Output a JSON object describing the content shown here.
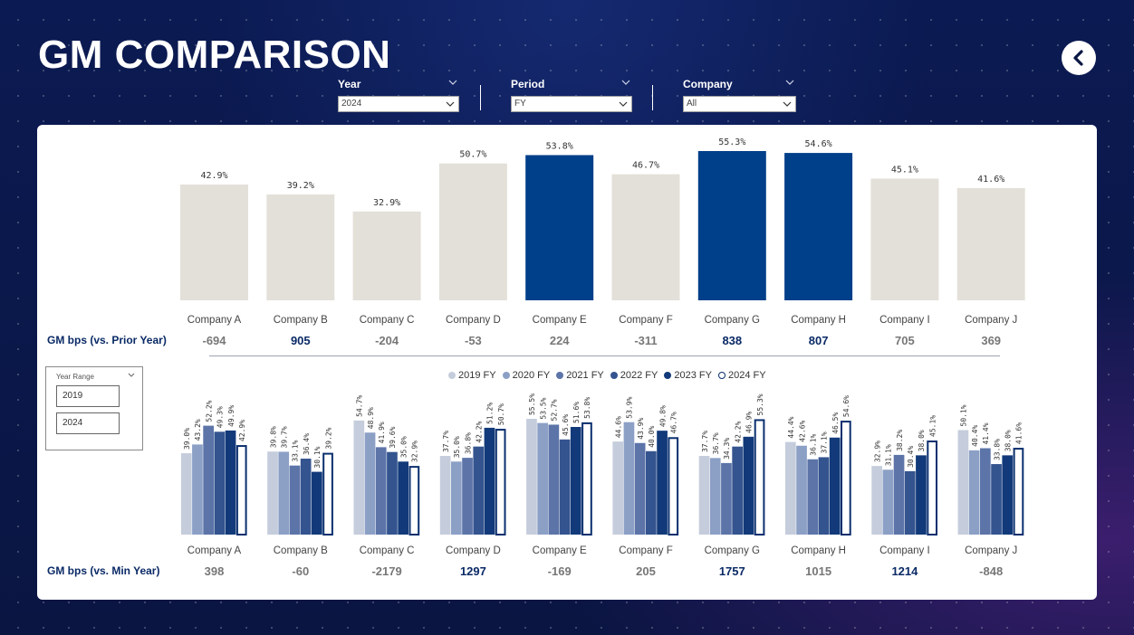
{
  "page": {
    "title": "GM COMPARISON"
  },
  "filters": {
    "year": {
      "label": "Year",
      "value": "2024"
    },
    "period": {
      "label": "Period",
      "value": "FY"
    },
    "company": {
      "label": "Company",
      "value": "All"
    }
  },
  "year_range": {
    "label": "Year Range",
    "from": "2019",
    "to": "2024"
  },
  "rows": {
    "prior_year_label": "GM bps (vs. Prior Year)",
    "min_year_label": "GM bps (vs. Min Year)"
  },
  "colors": {
    "highlight": "#003f8a",
    "neutral": "#e3e0d9",
    "series": [
      "#c5cddc",
      "#8ca0c6",
      "#5c74a8",
      "#34548f",
      "#123a7a",
      "#ffffff"
    ],
    "series_2024_border": "#0a2f6e",
    "bps_positive_bold": "#0a2a66",
    "bps_muted": "#777777"
  },
  "chart_data": [
    {
      "type": "bar",
      "categories": [
        "Company A",
        "Company B",
        "Company C",
        "Company D",
        "Company E",
        "Company F",
        "Company G",
        "Company H",
        "Company I",
        "Company J"
      ],
      "values": [
        42.9,
        39.2,
        32.9,
        50.7,
        53.8,
        46.7,
        55.3,
        54.6,
        45.1,
        41.6
      ],
      "value_labels": [
        "42.9%",
        "39.2%",
        "32.9%",
        "50.7%",
        "53.8%",
        "46.7%",
        "55.3%",
        "54.6%",
        "45.1%",
        "41.6%"
      ],
      "highlighted": [
        false,
        false,
        false,
        false,
        true,
        false,
        true,
        true,
        false,
        false
      ],
      "ylim": [
        0,
        60
      ],
      "bps_vs_prior_year": [
        "-694",
        "905",
        "-204",
        "-53",
        "224",
        "-311",
        "838",
        "807",
        "705",
        "369"
      ],
      "bps_bold": [
        false,
        true,
        false,
        false,
        false,
        false,
        true,
        true,
        false,
        false
      ]
    },
    {
      "type": "bar",
      "categories": [
        "Company A",
        "Company B",
        "Company C",
        "Company D",
        "Company E",
        "Company F",
        "Company G",
        "Company H",
        "Company I",
        "Company J"
      ],
      "legend": {
        "position": "top"
      },
      "series": [
        {
          "name": "2019 FY",
          "values": [
            39.0,
            39.8,
            54.7,
            37.7,
            55.5,
            44.6,
            37.7,
            44.4,
            32.9,
            50.1
          ]
        },
        {
          "name": "2020 FY",
          "values": [
            43.2,
            39.7,
            48.9,
            35.0,
            53.5,
            53.9,
            36.7,
            42.6,
            31.1,
            40.4
          ]
        },
        {
          "name": "2021 FY",
          "values": [
            52.2,
            33.1,
            41.9,
            36.8,
            52.7,
            43.9,
            34.3,
            36.1,
            38.2,
            41.4
          ]
        },
        {
          "name": "2022 FY",
          "values": [
            49.3,
            36.4,
            39.6,
            42.2,
            45.6,
            40.0,
            42.2,
            37.1,
            30.4,
            33.8
          ]
        },
        {
          "name": "2023 FY",
          "values": [
            49.9,
            30.1,
            35.0,
            51.2,
            51.6,
            49.8,
            46.9,
            46.5,
            38.0,
            38.0
          ]
        },
        {
          "name": "2024 FY",
          "values": [
            42.9,
            39.2,
            32.9,
            50.7,
            53.8,
            46.7,
            55.3,
            54.6,
            45.1,
            41.6
          ]
        }
      ],
      "ylim": [
        0,
        60
      ],
      "bps_vs_min_year": [
        "398",
        "-60",
        "-2179",
        "1297",
        "-169",
        "205",
        "1757",
        "1015",
        "1214",
        "-848"
      ],
      "bps_bold": [
        false,
        false,
        false,
        true,
        false,
        false,
        true,
        false,
        true,
        false
      ]
    }
  ]
}
